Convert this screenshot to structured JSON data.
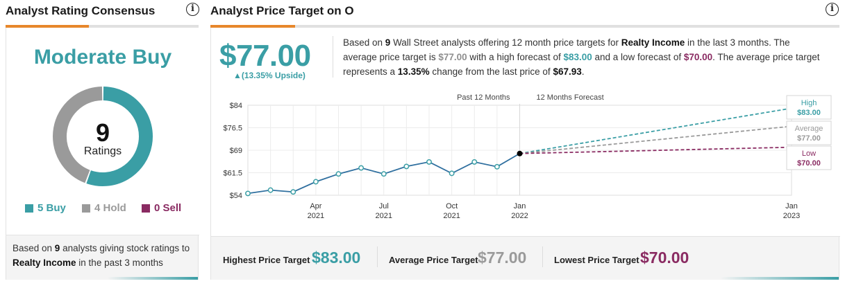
{
  "left_panel": {
    "title": "Analyst Rating Consensus",
    "consensus": "Moderate Buy",
    "total_ratings": "9",
    "ratings_label": "Ratings",
    "legend": {
      "buy": "5 Buy",
      "hold": "4 Hold",
      "sell": "0 Sell"
    },
    "counts": {
      "buy": 5,
      "hold": 4,
      "sell": 0
    },
    "footnote": {
      "pre": "Based on ",
      "count": "9",
      "mid": " analysts giving stock ratings to ",
      "company": "Realty Income",
      "post": " in the past 3 months"
    }
  },
  "right_panel": {
    "title": "Analyst Price Target on O",
    "price_target": "$77.00",
    "upside": "▲(13.35% Upside)",
    "desc": {
      "t1": "Based on ",
      "analysts": "9",
      "t2": " Wall Street analysts offering 12 month price targets for ",
      "company": "Realty Income",
      "t3": " in the last 3 months. The average price target is ",
      "avg": "$77.00",
      "t4": " with a high forecast of ",
      "high": "$83.00",
      "t5": " and a low forecast of ",
      "low": "$70.00",
      "t6": ". The average price target represents a ",
      "change": "13.35%",
      "t7": " change from the last price of ",
      "last": "$67.93",
      "t8": "."
    },
    "bottom": {
      "highest_label": "Highest Price Target",
      "highest_value": "$83.00",
      "average_label": "Average Price Target",
      "average_value": "$77.00",
      "lowest_label": "Lowest Price Target",
      "lowest_value": "$70.00"
    }
  },
  "colors": {
    "teal": "#3a9ea5",
    "gray": "#9a9a9a",
    "plum": "#8a2b62",
    "orange": "#e7872b",
    "history_line": "#2f6f9f"
  },
  "chart_data": {
    "type": "line",
    "y_ticks": [
      "$84",
      "$76.5",
      "$69",
      "$61.5",
      "$54"
    ],
    "ylim": [
      54,
      84
    ],
    "x_ticks": [
      {
        "month": "Apr",
        "year": "2021"
      },
      {
        "month": "Jul",
        "year": "2021"
      },
      {
        "month": "Oct",
        "year": "2021"
      },
      {
        "month": "Jan",
        "year": "2022"
      },
      {
        "month": "Jan",
        "year": "2023"
      }
    ],
    "x_tick_positions": [
      3,
      6,
      9,
      12,
      24
    ],
    "past_label": "Past 12 Months",
    "forecast_label": "12 Months Forecast",
    "series": [
      {
        "name": "Price",
        "x": [
          0,
          1,
          2,
          3,
          4,
          5,
          6,
          7,
          8,
          9,
          10,
          11,
          12
        ],
        "values": [
          54.6,
          55.7,
          55.1,
          58.5,
          61.1,
          63.1,
          61.1,
          63.6,
          65.1,
          61.3,
          65.1,
          63.5,
          67.9
        ]
      }
    ],
    "forecast": [
      {
        "name": "High",
        "label": "High",
        "value_label": "$83.00",
        "value": 83.0,
        "color": "teal"
      },
      {
        "name": "Average",
        "label": "Average",
        "value_label": "$77.00",
        "value": 77.0,
        "color": "gray"
      },
      {
        "name": "Low",
        "label": "Low",
        "value_label": "$70.00",
        "value": 70.0,
        "color": "plum"
      }
    ]
  }
}
